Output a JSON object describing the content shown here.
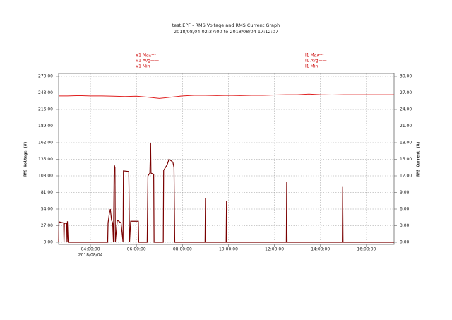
{
  "chart_data": {
    "type": "line",
    "title": "test.EPF - RMS Voltage and RMS Current Graph",
    "subtitle": "2018/08/04 02:37:00 to 2018/08/04 17:12:07",
    "legend_left": [
      "V1 Max---",
      "V1 Avg——",
      "V1 Min---"
    ],
    "legend_right": [
      "I1 Max---",
      "I1 Avg——",
      "I1 Min---"
    ],
    "ylabel": "RMS Voltage (V)",
    "y2label": "RMS Current (A)",
    "x_date_label": "2018/08/04",
    "xlim": [
      "02:37:00",
      "17:12:07"
    ],
    "xticks": [
      "04:00:00",
      "06:00:00",
      "08:00:00",
      "10:00:00",
      "12:00:00",
      "14:00:00",
      "16:00:00"
    ],
    "ylim": [
      0,
      270
    ],
    "yticks": [
      {
        "value": 0,
        "label": "0.00"
      },
      {
        "value": 27,
        "label": "27.00"
      },
      {
        "value": 54,
        "label": "54.00"
      },
      {
        "value": 81,
        "label": "81.00"
      },
      {
        "value": 108,
        "label": "108.00"
      },
      {
        "value": 135,
        "label": "135.00"
      },
      {
        "value": 162,
        "label": "162.00"
      },
      {
        "value": 189,
        "label": "189.00"
      },
      {
        "value": 216,
        "label": "216.00"
      },
      {
        "value": 243,
        "label": "243.00"
      },
      {
        "value": 270,
        "label": "270.00"
      }
    ],
    "y2lim": [
      0,
      30
    ],
    "y2ticks": [
      {
        "value": 0,
        "label": "0.00"
      },
      {
        "value": 3,
        "label": "3.00"
      },
      {
        "value": 6,
        "label": "6.00"
      },
      {
        "value": 9,
        "label": "9.00"
      },
      {
        "value": 12,
        "label": "12.00"
      },
      {
        "value": 15,
        "label": "15.00"
      },
      {
        "value": 18,
        "label": "18.00"
      },
      {
        "value": 21,
        "label": "21.00"
      },
      {
        "value": 24,
        "label": "24.00"
      },
      {
        "value": 27,
        "label": "27.00"
      },
      {
        "value": 30,
        "label": "30.00"
      }
    ],
    "grid": true,
    "series": [
      {
        "color": "#e02020",
        "axis": "y",
        "x": [
          "02:37:00",
          "03:00:00",
          "03:30:00",
          "04:00:00",
          "04:30:00",
          "05:00:00",
          "05:30:00",
          "06:00:00",
          "06:30:00",
          "07:00:00",
          "07:30:00",
          "08:00:00",
          "08:30:00",
          "09:00:00",
          "09:30:00",
          "10:00:00",
          "10:30:00",
          "11:00:00",
          "11:30:00",
          "12:00:00",
          "12:30:00",
          "13:00:00",
          "13:30:00",
          "14:00:00",
          "14:30:00",
          "15:00:00",
          "15:30:00",
          "16:00:00",
          "16:30:00",
          "17:00:00",
          "17:12:00"
        ],
        "values": [
          238,
          238,
          238.5,
          238,
          238,
          237.5,
          237,
          237.5,
          236,
          234,
          236,
          238,
          239,
          239,
          238.5,
          239,
          238.5,
          239,
          239,
          239.5,
          240,
          240,
          241,
          240,
          239.5,
          240,
          240,
          240,
          240,
          240,
          240
        ]
      },
      {
        "color": "#7a0000",
        "axis": "y2",
        "x": [
          "02:37:00",
          "02:38:00",
          "02:50:00",
          "02:51:00",
          "02:52:00",
          "02:58:00",
          "02:59:00",
          "03:00:00",
          "03:02:00",
          "04:45:00",
          "04:46:00",
          "04:50:00",
          "04:52:00",
          "04:55:00",
          "04:58:00",
          "05:00:00",
          "05:02:00",
          "05:04:00",
          "05:05:00",
          "05:10:00",
          "05:20:00",
          "05:25:00",
          "05:26:00",
          "05:40:00",
          "05:42:00",
          "05:45:00",
          "06:05:00",
          "06:06:00",
          "06:28:00",
          "06:30:00",
          "06:35:00",
          "06:37:00",
          "06:38:00",
          "06:45:00",
          "06:46:00",
          "07:10:00",
          "07:11:00",
          "07:20:00",
          "07:25:00",
          "07:35:00",
          "07:38:00",
          "07:40:00",
          "08:59:00",
          "09:00:00",
          "09:01:00",
          "09:54:00",
          "09:55:00",
          "09:56:00",
          "12:31:00",
          "12:32:00",
          "12:33:00",
          "14:57:00",
          "14:58:00",
          "14:59:00",
          "17:12:00"
        ],
        "values": [
          0,
          3.7,
          3.5,
          0,
          3.4,
          3.5,
          0,
          3.8,
          0,
          0,
          3.5,
          5.5,
          6,
          4,
          3.5,
          0,
          14,
          13.5,
          0,
          4,
          3.5,
          0,
          12.9,
          12.8,
          0,
          3.8,
          3.8,
          0,
          0,
          12,
          12.5,
          18,
          12.5,
          12.3,
          0,
          0,
          13,
          14,
          15,
          14.5,
          13.5,
          0,
          0,
          8,
          0,
          0,
          7.5,
          0,
          0,
          10.9,
          0,
          0,
          10,
          0,
          0
        ]
      }
    ]
  }
}
